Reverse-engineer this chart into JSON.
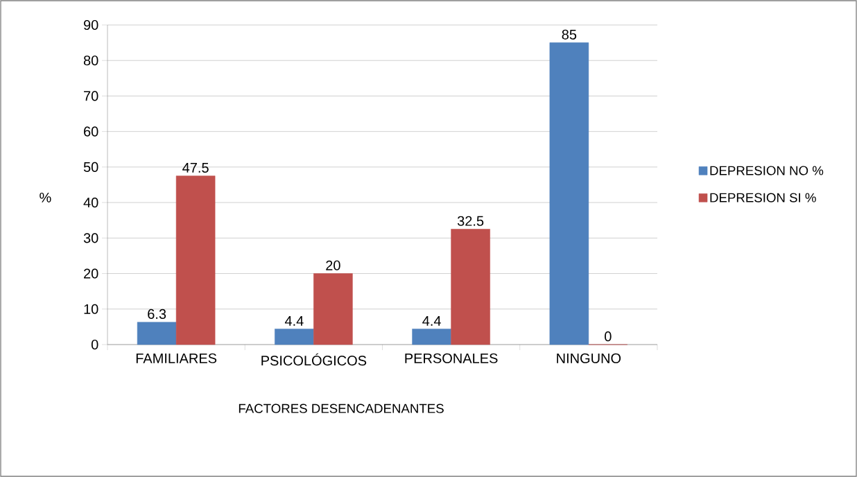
{
  "chart_data": {
    "type": "bar",
    "categories": [
      "FAMILIARES",
      "PSICOLÓGICOS",
      "PERSONALES",
      "NINGUNO"
    ],
    "series": [
      {
        "name": "DEPRESION NO %",
        "color": "#4f81bd",
        "values": [
          6.3,
          4.4,
          4.4,
          85
        ]
      },
      {
        "name": "DEPRESION SI %",
        "color": "#c0504d",
        "values": [
          47.5,
          20,
          32.5,
          0
        ]
      }
    ],
    "xlabel": "FACTORES DESENCADENANTES",
    "ylabel": "%",
    "ylim": [
      0,
      90
    ],
    "yticks": [
      0,
      10,
      20,
      30,
      40,
      50,
      60,
      70,
      80,
      90
    ],
    "grid": "y",
    "legend": "right",
    "data_labels": true
  }
}
